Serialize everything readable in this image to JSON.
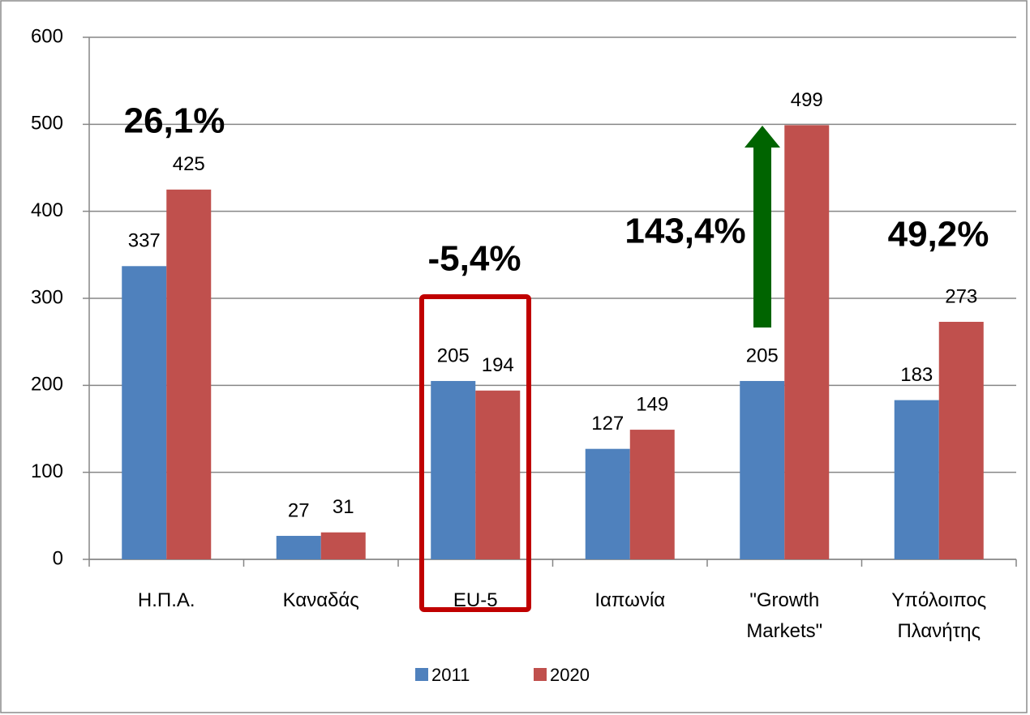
{
  "chart_data": {
    "type": "bar",
    "categories": [
      "Η.Π.Α.",
      "Καναδάς",
      "EU-5",
      "Ιαπωνία",
      "\"Growth Markets\"",
      "Υπόλοιπος Πλανήτης"
    ],
    "series": [
      {
        "name": "2011",
        "color": "#4f81bd",
        "values": [
          337,
          27,
          205,
          127,
          205,
          183
        ]
      },
      {
        "name": "2020",
        "color": "#c0504d",
        "values": [
          425,
          31,
          194,
          149,
          499,
          273
        ]
      }
    ],
    "ylim": [
      0,
      600
    ],
    "yticks": [
      0,
      100,
      200,
      300,
      400,
      500,
      600
    ],
    "grid": true,
    "legend": "bottom",
    "annotations": [
      {
        "text": "26,1%",
        "color": "#228b22"
      },
      {
        "text": "-5,4%",
        "color": "#c00000"
      },
      {
        "text": "143,4%",
        "color": "#1e7b1e"
      },
      {
        "text": "49,2%",
        "color": "#228b22"
      }
    ]
  }
}
